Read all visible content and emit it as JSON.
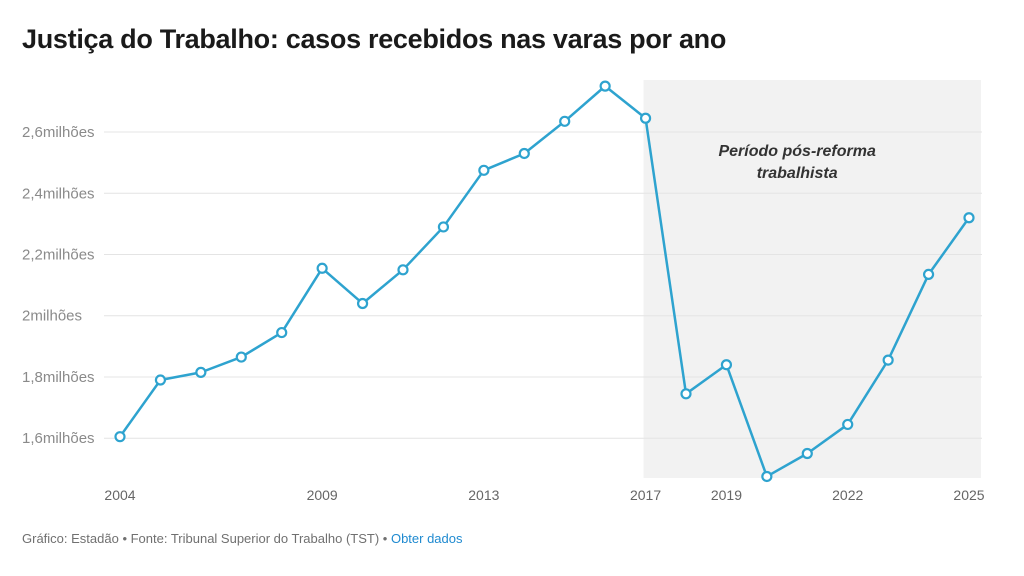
{
  "chart_data": {
    "type": "line",
    "title": "Justiça do Trabalho: casos recebidos nas varas por ano",
    "xlabel": "",
    "ylabel": "",
    "x": [
      2004,
      2005,
      2006,
      2007,
      2008,
      2009,
      2010,
      2011,
      2012,
      2013,
      2014,
      2015,
      2016,
      2017,
      2018,
      2019,
      2020,
      2021,
      2022,
      2023,
      2024,
      2025
    ],
    "series": [
      {
        "name": "Casos recebidos",
        "color": "#2ea3cf",
        "values": [
          1.605,
          1.79,
          1.815,
          1.865,
          1.945,
          2.155,
          2.04,
          2.15,
          2.29,
          2.475,
          2.53,
          2.635,
          2.75,
          2.645,
          1.745,
          1.84,
          1.475,
          1.55,
          1.645,
          1.855,
          2.135,
          2.32
        ]
      }
    ],
    "x_ticks": [
      2004,
      2009,
      2013,
      2017,
      2019,
      2022,
      2025
    ],
    "x_tick_labels": [
      "2004",
      "2009",
      "2013",
      "2017",
      "2019",
      "2022",
      "2025"
    ],
    "y_ticks": [
      1.6,
      1.8,
      2.0,
      2.2,
      2.4,
      2.6
    ],
    "y_tick_labels": [
      "1,6milhões",
      "1,8milhões",
      "2milhões",
      "2,2milhões",
      "2,4milhões",
      "2,6milhões"
    ],
    "xlim": [
      2004,
      2025
    ],
    "ylim": [
      1.47,
      2.77
    ],
    "grid": true,
    "shaded_region": {
      "x_start": 2017,
      "x_end": 2025,
      "color": "#f2f2f2",
      "label_line1": "Período pós-reforma",
      "label_line2": "trabalhista"
    }
  },
  "footer": {
    "credit": "Gráfico: Estadão • Fonte: Tribunal Superior do Trabalho (TST) • ",
    "link": "Obter dados"
  }
}
